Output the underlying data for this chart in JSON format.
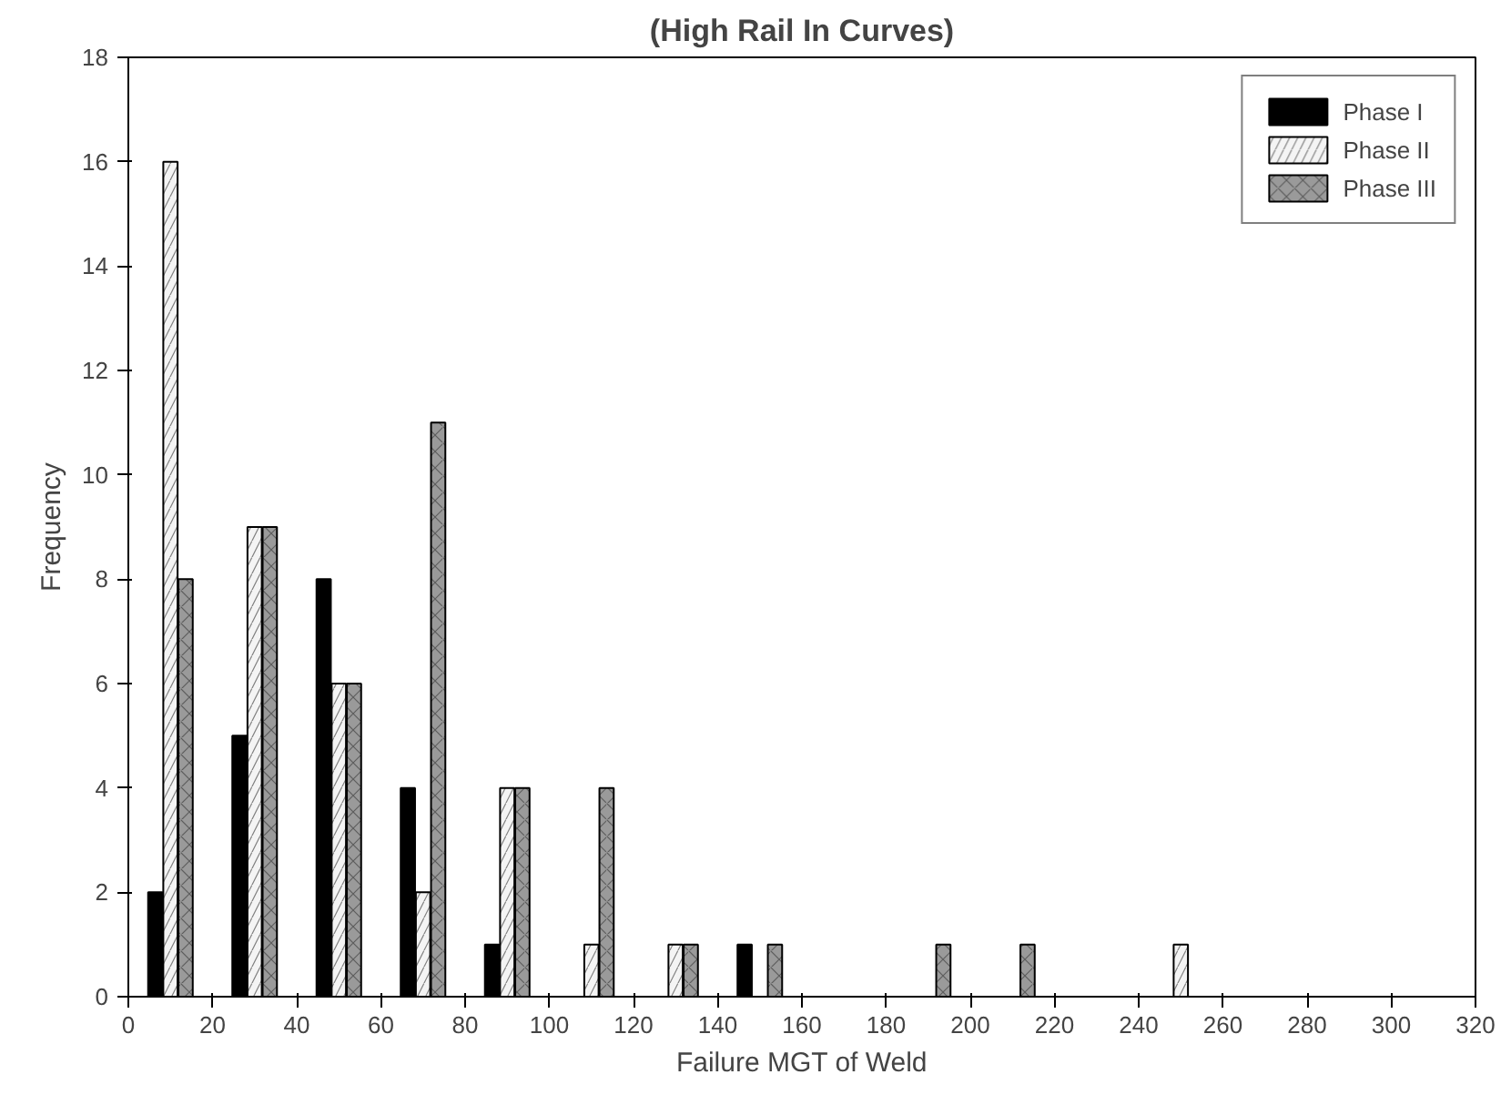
{
  "chart_data": {
    "type": "bar",
    "title": "(High Rail In Curves)",
    "xlabel": "Failure MGT of Weld",
    "ylabel": "Frequency",
    "x": [
      10,
      30,
      50,
      70,
      90,
      110,
      130,
      150,
      170,
      190,
      210,
      230,
      250
    ],
    "series": [
      {
        "name": "Phase I",
        "color": "#000000",
        "values": [
          2,
          5,
          8,
          4,
          1,
          0,
          0,
          1,
          0,
          0,
          0,
          0,
          0
        ]
      },
      {
        "name": "Phase II",
        "color": "#f4f4f4",
        "values": [
          16,
          9,
          6,
          2,
          4,
          1,
          1,
          0,
          0,
          0,
          0,
          0,
          1
        ]
      },
      {
        "name": "Phase III",
        "color": "#9a9a9a",
        "values": [
          8,
          9,
          6,
          11,
          4,
          4,
          1,
          1,
          0,
          1,
          1,
          0,
          0
        ]
      }
    ],
    "xlim": [
      0,
      320
    ],
    "xticks": [
      0,
      20,
      40,
      60,
      80,
      100,
      120,
      140,
      160,
      180,
      200,
      220,
      240,
      260,
      280,
      300,
      320
    ],
    "ylim": [
      0,
      18
    ],
    "yticks": [
      0,
      2,
      4,
      6,
      8,
      10,
      12,
      14,
      16,
      18
    ],
    "grid": false,
    "legend": "top right"
  }
}
